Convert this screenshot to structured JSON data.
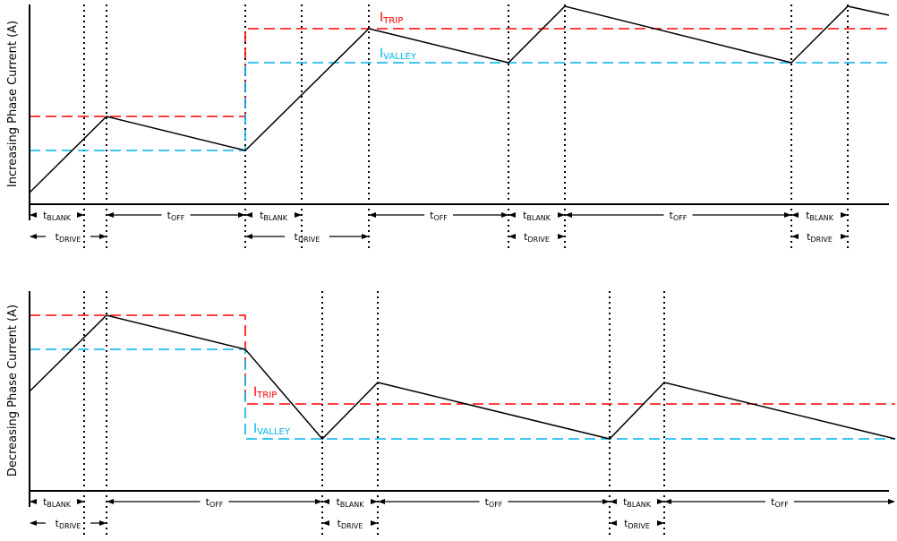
{
  "colors": {
    "trip": "#ff0000",
    "valley": "#00b0f0",
    "waveform": "#000000"
  },
  "labels": {
    "t": "t",
    "blank": "BLANK",
    "off": "OFF",
    "drive": "DRIVE",
    "i": "I",
    "trip": "TRIP",
    "valley": "VALLEY"
  },
  "panels": [
    {
      "ylabel": "Increasing Phase Current (A)"
    },
    {
      "ylabel": "Decreasing Phase Current (A)"
    }
  ]
}
